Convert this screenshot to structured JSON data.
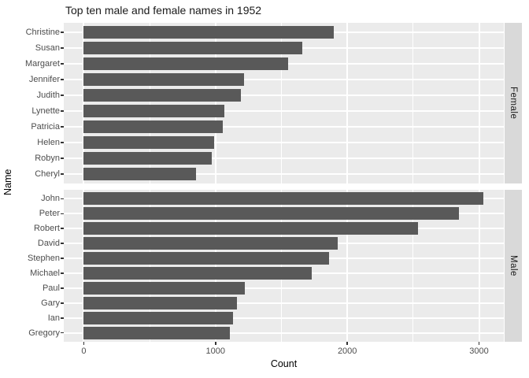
{
  "title": "Top ten male and female names in 1952",
  "chart_data": {
    "type": "bar",
    "orientation": "horizontal",
    "title": "Top ten male and female names in 1952",
    "xlabel": "Count",
    "ylabel": "Name",
    "legend": "none",
    "grid": true,
    "x_ticks": [
      0,
      1000,
      2000,
      3000
    ],
    "x_tick_labels": [
      "0",
      "1000",
      "2000",
      "3000"
    ],
    "x_minor_ticks": [
      500,
      1500,
      2500
    ],
    "xlim": [
      -152,
      3188
    ],
    "facets": [
      {
        "label": "Female",
        "categories": [
          "Christine",
          "Susan",
          "Margaret",
          "Jennifer",
          "Judith",
          "Lynette",
          "Patricia",
          "Helen",
          "Robyn",
          "Cheryl"
        ],
        "values": [
          1900,
          1660,
          1550,
          1215,
          1190,
          1065,
          1055,
          990,
          970,
          850
        ]
      },
      {
        "label": "Male",
        "categories": [
          "John",
          "Peter",
          "Robert",
          "David",
          "Stephen",
          "Michael",
          "Paul",
          "Gary",
          "Ian",
          "Gregory"
        ],
        "values": [
          3035,
          2845,
          2535,
          1925,
          1860,
          1730,
          1225,
          1165,
          1135,
          1110
        ]
      }
    ],
    "colors": {
      "bar": "#595959",
      "panel_bg": "#EBEBEB",
      "strip_bg": "#D9D9D9",
      "grid": "#FFFFFF",
      "tick_mark": "#333333",
      "tick_text": "#4D4D4D",
      "title_text": "#1A1A1A"
    }
  }
}
